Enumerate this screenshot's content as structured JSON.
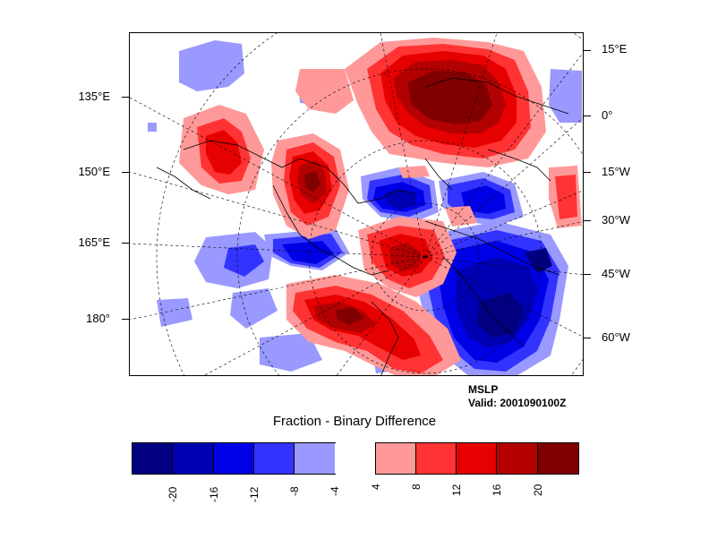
{
  "plot": {
    "field_name": "MSLP",
    "valid_time": "Valid: 2001090100Z",
    "colorbar_title": "Fraction - Binary Difference"
  },
  "axes": {
    "left_labels": [
      "135°E",
      "150°E",
      "165°E",
      "180°"
    ],
    "right_labels": [
      "15°E",
      "0°",
      "15°W",
      "30°W",
      "45°W",
      "60°W"
    ]
  },
  "colorbar": {
    "colors": [
      "#000080",
      "#0000b3",
      "#0000e6",
      "#3333ff",
      "#9999ff",
      "#ffffff",
      "#ff9999",
      "#ff3333",
      "#e60000",
      "#b30000",
      "#800000"
    ],
    "labels": [
      "-20",
      "-16",
      "-12",
      "-8",
      "-4",
      "4",
      "8",
      "12",
      "16",
      "20"
    ]
  },
  "chart_data": {
    "type": "heatmap",
    "title": "Fraction - Binary Difference",
    "field": "MSLP",
    "valid": "Valid: 2001090100Z",
    "levels": [
      -20,
      -16,
      -12,
      -8,
      -4,
      4,
      8,
      12,
      16,
      20
    ],
    "colors": [
      "#000080",
      "#0000b3",
      "#0000e6",
      "#3333ff",
      "#9999ff",
      "#ffffff",
      "#ff9999",
      "#ff3333",
      "#e60000",
      "#b30000",
      "#800000"
    ],
    "projection": "polar stereographic (northern hemisphere)"
  }
}
